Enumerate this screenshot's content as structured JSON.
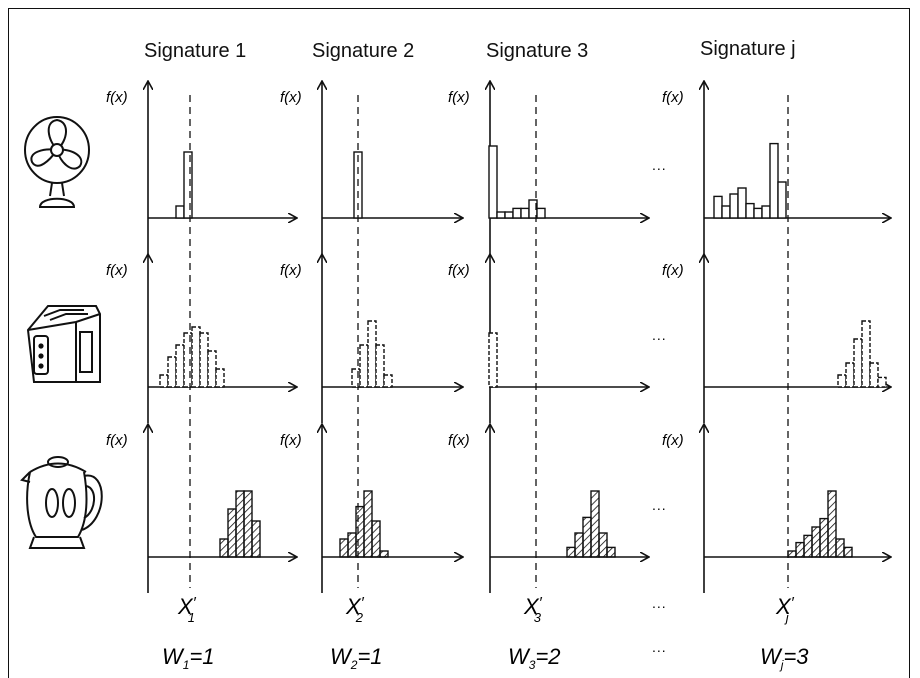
{
  "signatures": [
    {
      "title": "Signature 1",
      "x_prime": {
        "symbol": "X",
        "prime": "′",
        "sub": "1"
      },
      "weight": {
        "symbol": "W",
        "sub": "1",
        "eq": "=1"
      }
    },
    {
      "title": "Signature 2",
      "x_prime": {
        "symbol": "X",
        "prime": "′",
        "sub": "2"
      },
      "weight": {
        "symbol": "W",
        "sub": "2",
        "eq": "=1"
      }
    },
    {
      "title": "Signature 3",
      "x_prime": {
        "symbol": "X",
        "prime": "′",
        "sub": "3"
      },
      "weight": {
        "symbol": "W",
        "sub": "3",
        "eq": "=2"
      }
    },
    {
      "title": "Signature j",
      "x_prime": {
        "symbol": "X",
        "prime": "′",
        "sub": "j"
      },
      "weight": {
        "symbol": "W",
        "sub": "j",
        "eq": "=3"
      }
    }
  ],
  "axis_label": "f(x)",
  "ellipsis": "...",
  "appliances": [
    {
      "name": "fan-icon",
      "fill": "open"
    },
    {
      "name": "toaster-icon",
      "fill": "dashed"
    },
    {
      "name": "kettle-icon",
      "fill": "hatched"
    }
  ],
  "histograms": [
    [
      {
        "bars": [
          0.1,
          0.55
        ],
        "fill": "open"
      },
      {
        "bars": [
          0.55
        ],
        "fill": "open"
      },
      {
        "bars": [
          0.6,
          0.05,
          0.05,
          0.08,
          0.08,
          0.15,
          0.08
        ],
        "fill": "open"
      },
      {
        "bars": [
          0.18,
          0.1,
          0.2,
          0.25,
          0.12,
          0.08,
          0.1,
          0.62,
          0.3
        ],
        "fill": "open"
      }
    ],
    [
      {
        "bars": [
          0.1,
          0.25,
          0.35,
          0.45,
          0.5,
          0.45,
          0.3,
          0.15
        ],
        "fill": "dashed"
      },
      {
        "bars": [
          0.15,
          0.35,
          0.55,
          0.35,
          0.1
        ],
        "fill": "dashed"
      },
      {
        "bars": [
          0.45
        ],
        "fill": "dashed"
      },
      {
        "bars": [
          0.1,
          0.2,
          0.4,
          0.55,
          0.2,
          0.08
        ],
        "fill": "dashed"
      }
    ],
    [
      {
        "bars": [
          0.15,
          0.4,
          0.55,
          0.55,
          0.3
        ],
        "fill": "hatched"
      },
      {
        "bars": [
          0.15,
          0.2,
          0.42,
          0.55,
          0.3,
          0.05
        ],
        "fill": "hatched"
      },
      {
        "bars": [
          0.08,
          0.2,
          0.33,
          0.55,
          0.2,
          0.08
        ],
        "fill": "hatched"
      },
      {
        "bars": [
          0.05,
          0.12,
          0.18,
          0.25,
          0.32,
          0.55,
          0.15,
          0.08
        ],
        "fill": "hatched"
      }
    ]
  ]
}
